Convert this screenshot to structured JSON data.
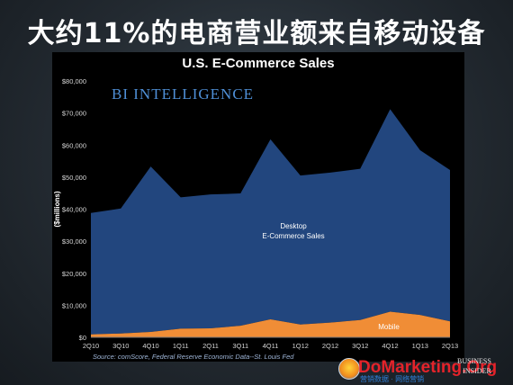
{
  "slide": {
    "title": "大约11%的电商营业额来自移动设备"
  },
  "brand_label": "BI INTELLIGENCE",
  "footer": {
    "logo_text": "DoMarketing.Org",
    "logo_sub": "营销数据 · 网络营销",
    "bi_mark_line1": "BUSINESS",
    "bi_mark_line2": "INSIDER"
  },
  "colors": {
    "desktop": "#22467e",
    "mobile": "#f08d36",
    "axis_text": "#ffffff",
    "tick_text": "#d6d6d6"
  },
  "chart_data": {
    "type": "area",
    "title": "U.S. E-Commerce Sales",
    "ylabel": "($millions)",
    "xlabel": "",
    "source": "Source: comScore, Federal Reserve Economic Data--St. Louis Fed",
    "categories": [
      "2Q10",
      "3Q10",
      "4Q10",
      "1Q11",
      "2Q11",
      "3Q11",
      "4Q11",
      "1Q12",
      "2Q12",
      "3Q12",
      "4Q12",
      "1Q13",
      "2Q13"
    ],
    "ylim": [
      0,
      80000
    ],
    "yticks": [
      "$0",
      "$10,000",
      "$20,000",
      "$30,000",
      "$40,000",
      "$50,000",
      "$60,000",
      "$70,000",
      "$80,000"
    ],
    "stacked": true,
    "series": [
      {
        "name": "Mobile",
        "values": [
          900,
          1200,
          1700,
          2700,
          2800,
          3600,
          5600,
          4000,
          4600,
          5400,
          8000,
          7000,
          5000
        ]
      },
      {
        "name": "Desktop E-Commerce Sales",
        "label_lines": [
          "Desktop",
          "E-Commerce Sales"
        ],
        "values": [
          37900,
          39000,
          51600,
          41000,
          41800,
          41300,
          56200,
          46500,
          46800,
          47200,
          63200,
          51400,
          47200
        ]
      }
    ],
    "grid": false
  }
}
